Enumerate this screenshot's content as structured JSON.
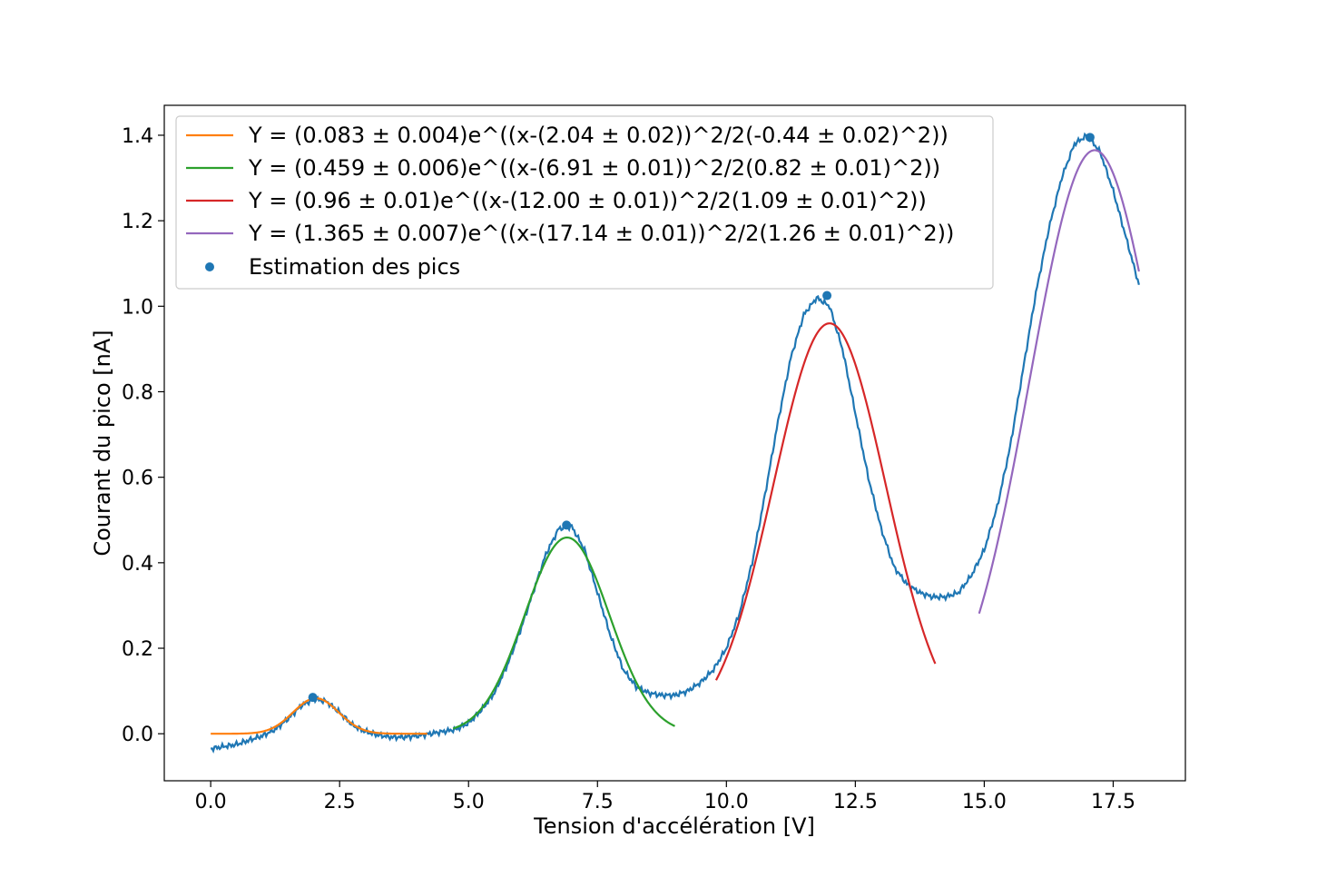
{
  "chart_data": {
    "type": "line",
    "xlabel": "Tension d'accélération [V]",
    "ylabel": "Courant du pico [nA]",
    "xlim": [
      -0.9,
      18.9
    ],
    "ylim": [
      -0.11,
      1.47
    ],
    "xticks": [
      0.0,
      2.5,
      5.0,
      7.5,
      10.0,
      12.5,
      15.0,
      17.5
    ],
    "xtick_labels": [
      "0.0",
      "2.5",
      "5.0",
      "7.5",
      "10.0",
      "12.5",
      "15.0",
      "17.5"
    ],
    "yticks": [
      0.0,
      0.2,
      0.4,
      0.6,
      0.8,
      1.0,
      1.2,
      1.4
    ],
    "ytick_labels": [
      "0.0",
      "0.2",
      "0.4",
      "0.6",
      "0.8",
      "1.0",
      "1.2",
      "1.4"
    ],
    "grid": false,
    "legend_position": "top-left",
    "colors": {
      "data": "#1f77b4",
      "fit1": "#ff7f0e",
      "fit2": "#2ca02c",
      "fit3": "#d62728",
      "fit4": "#9467bd"
    },
    "measured": {
      "color": "#1f77b4",
      "x": [
        0.0,
        0.25,
        0.5,
        0.75,
        1.0,
        1.25,
        1.5,
        1.75,
        2.0,
        2.25,
        2.5,
        2.75,
        3.0,
        3.25,
        3.5,
        3.75,
        4.0,
        4.25,
        4.5,
        4.75,
        5.0,
        5.25,
        5.5,
        5.75,
        6.0,
        6.25,
        6.5,
        6.75,
        7.0,
        7.25,
        7.5,
        7.75,
        8.0,
        8.25,
        8.5,
        8.75,
        9.0,
        9.25,
        9.5,
        9.75,
        10.0,
        10.25,
        10.5,
        10.75,
        11.0,
        11.25,
        11.5,
        11.75,
        12.0,
        12.25,
        12.5,
        12.75,
        13.0,
        13.25,
        13.5,
        13.75,
        14.0,
        14.25,
        14.5,
        14.75,
        15.0,
        15.25,
        15.5,
        15.75,
        16.0,
        16.25,
        16.5,
        16.75,
        17.0,
        17.25,
        17.5,
        17.75,
        18.0
      ],
      "y": [
        -0.035,
        -0.03,
        -0.025,
        -0.015,
        -0.005,
        0.01,
        0.035,
        0.065,
        0.082,
        0.075,
        0.05,
        0.02,
        0.005,
        -0.003,
        -0.008,
        -0.008,
        -0.005,
        0.0,
        0.005,
        0.01,
        0.025,
        0.055,
        0.095,
        0.16,
        0.24,
        0.33,
        0.42,
        0.48,
        0.485,
        0.43,
        0.33,
        0.23,
        0.15,
        0.11,
        0.095,
        0.09,
        0.09,
        0.1,
        0.12,
        0.15,
        0.2,
        0.28,
        0.4,
        0.56,
        0.73,
        0.88,
        0.98,
        1.02,
        1.0,
        0.9,
        0.75,
        0.6,
        0.48,
        0.39,
        0.35,
        0.33,
        0.32,
        0.32,
        0.33,
        0.37,
        0.43,
        0.53,
        0.67,
        0.85,
        1.03,
        1.18,
        1.3,
        1.38,
        1.4,
        1.36,
        1.27,
        1.16,
        1.05
      ]
    },
    "peaks": {
      "name": "Estimation des pics",
      "color": "#1f77b4",
      "x": [
        1.98,
        6.9,
        11.95,
        17.05
      ],
      "y": [
        0.085,
        0.488,
        1.025,
        1.395
      ]
    },
    "series": [
      {
        "name": "Y = (0.083 ± 0.004)e^((x-(2.04 ± 0.02))^2/2(-0.44 ± 0.02)^2))",
        "color": "#ff7f0e",
        "amplitude": 0.083,
        "center": 2.04,
        "sigma": 0.44,
        "x_range": [
          0.0,
          4.2
        ]
      },
      {
        "name": "Y = (0.459 ± 0.006)e^((x-(6.91 ± 0.01))^2/2(0.82 ± 0.01)^2))",
        "color": "#2ca02c",
        "amplitude": 0.459,
        "center": 6.91,
        "sigma": 0.82,
        "x_range": [
          4.7,
          9.0
        ]
      },
      {
        "name": "Y = (0.96 ± 0.01)e^((x-(12.00 ± 0.01))^2/2(1.09 ± 0.01)^2))",
        "color": "#d62728",
        "amplitude": 0.96,
        "center": 12.0,
        "sigma": 1.09,
        "x_range": [
          9.8,
          14.05
        ]
      },
      {
        "name": "Y = (1.365 ± 0.007)e^((x-(17.14 ± 0.01))^2/2(1.26 ± 0.01)^2))",
        "color": "#9467bd",
        "amplitude": 1.365,
        "center": 17.14,
        "sigma": 1.26,
        "x_range": [
          14.9,
          18.0
        ]
      }
    ]
  }
}
